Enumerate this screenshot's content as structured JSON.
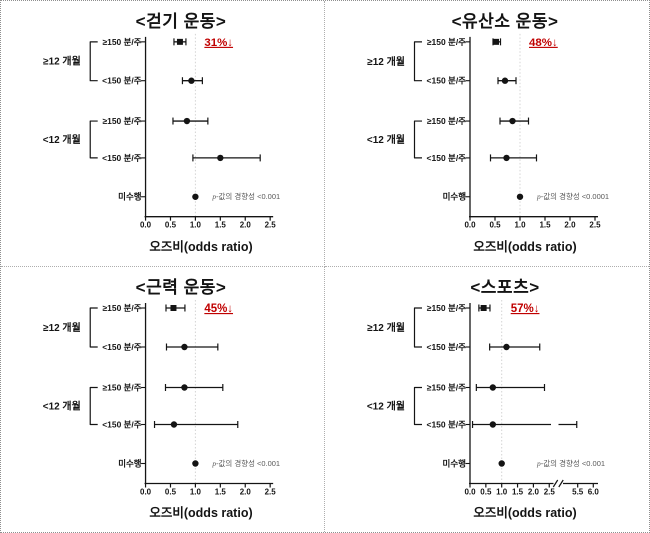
{
  "figure": {
    "colors": {
      "ink": "#141414",
      "annotation": "#c00000",
      "p_text": "#595959",
      "refline": "#d4d4d4"
    }
  },
  "chart_data": {
    "type": "forest",
    "x_axis_title": "오즈비(odds ratio)",
    "panels": [
      {
        "id": "walking",
        "title": "<걷기 운동>",
        "annotation": "31%↓",
        "p_trend_text": "p-값의 경향성 <0.001",
        "xlabel": "오즈비(odds ratio)",
        "refline": 1.0,
        "ticks": [
          {
            "v": 0.0,
            "label": "0.0"
          },
          {
            "v": 0.5,
            "label": "0.5"
          },
          {
            "v": 1.0,
            "label": "1.0"
          },
          {
            "v": 1.5,
            "label": "1.5"
          },
          {
            "v": 2.0,
            "label": "2.0"
          },
          {
            "v": 2.5,
            "label": "2.5"
          }
        ],
        "groups": [
          {
            "label": "≥12 개월",
            "rows": [
              {
                "label": "≥150 분/주",
                "or": 0.69,
                "lo": 0.57,
                "hi": 0.81,
                "marker": "square"
              },
              {
                "label": "<150 분/주",
                "or": 0.92,
                "lo": 0.74,
                "hi": 1.14,
                "marker": "circle"
              }
            ]
          },
          {
            "label": "<12 개월",
            "rows": [
              {
                "label": "≥150 분/주",
                "or": 0.83,
                "lo": 0.55,
                "hi": 1.25,
                "marker": "circle"
              },
              {
                "label": "<150 분/주",
                "or": 1.5,
                "lo": 0.95,
                "hi": 2.3,
                "marker": "circle"
              }
            ]
          }
        ],
        "reference_row": {
          "label": "미수행",
          "or": 1.0,
          "marker": "circle"
        }
      },
      {
        "id": "aerobic",
        "title": "<유산소 운동>",
        "annotation": "48%↓",
        "p_trend_text": "p-값의 경향성 <0.0001",
        "xlabel": "오즈비(odds ratio)",
        "refline": 1.0,
        "ticks": [
          {
            "v": 0.0,
            "label": "0.0"
          },
          {
            "v": 0.5,
            "label": "0.5"
          },
          {
            "v": 1.0,
            "label": "1.0"
          },
          {
            "v": 1.5,
            "label": "1.5"
          },
          {
            "v": 2.0,
            "label": "2.0"
          },
          {
            "v": 2.5,
            "label": "2.5"
          }
        ],
        "groups": [
          {
            "label": "≥12 개월",
            "rows": [
              {
                "label": "≥150 분/주",
                "or": 0.52,
                "lo": 0.46,
                "hi": 0.61,
                "marker": "square"
              },
              {
                "label": "<150 분/주",
                "or": 0.7,
                "lo": 0.56,
                "hi": 0.92,
                "marker": "circle"
              }
            ]
          },
          {
            "label": "<12 개월",
            "rows": [
              {
                "label": "≥150 분/주",
                "or": 0.85,
                "lo": 0.6,
                "hi": 1.17,
                "marker": "circle"
              },
              {
                "label": "<150 분/주",
                "or": 0.73,
                "lo": 0.41,
                "hi": 1.33,
                "marker": "circle"
              }
            ]
          }
        ],
        "reference_row": {
          "label": "미수행",
          "or": 1.0,
          "marker": "circle"
        }
      },
      {
        "id": "strength",
        "title": "<근력 운동>",
        "annotation": "45%↓",
        "p_trend_text": "p-값의 경향성 <0.001",
        "xlabel": "오즈비(odds ratio)",
        "refline": 1.0,
        "ticks": [
          {
            "v": 0.0,
            "label": "0.0"
          },
          {
            "v": 0.5,
            "label": "0.5"
          },
          {
            "v": 1.0,
            "label": "1.0"
          },
          {
            "v": 1.5,
            "label": "1.5"
          },
          {
            "v": 2.0,
            "label": "2.0"
          },
          {
            "v": 2.5,
            "label": "2.5"
          }
        ],
        "groups": [
          {
            "label": "≥12 개월",
            "rows": [
              {
                "label": "≥150 분/주",
                "or": 0.56,
                "lo": 0.41,
                "hi": 0.79,
                "marker": "square"
              },
              {
                "label": "<150 분/주",
                "or": 0.78,
                "lo": 0.42,
                "hi": 1.45,
                "marker": "circle"
              }
            ]
          },
          {
            "label": "<12 개월",
            "rows": [
              {
                "label": "≥150 분/주",
                "or": 0.78,
                "lo": 0.4,
                "hi": 1.55,
                "marker": "circle"
              },
              {
                "label": "<150 분/주",
                "or": 0.57,
                "lo": 0.18,
                "hi": 1.85,
                "marker": "circle"
              }
            ]
          }
        ],
        "reference_row": {
          "label": "미수행",
          "or": 1.0,
          "marker": "circle"
        }
      },
      {
        "id": "sports",
        "title": "<스포츠>",
        "annotation": "57%↓",
        "p_trend_text": "p-값의 경향성 <0.001",
        "xlabel": "오즈비(odds ratio)",
        "refline": 1.0,
        "axis_break": {
          "after": 2.5,
          "resume": 5.5
        },
        "ticks": [
          {
            "v": 0.0,
            "label": "0.0"
          },
          {
            "v": 0.5,
            "label": "0.5"
          },
          {
            "v": 1.0,
            "label": "1.0"
          },
          {
            "v": 1.5,
            "label": "1.5"
          },
          {
            "v": 2.0,
            "label": "2.0"
          },
          {
            "v": 2.5,
            "label": "2.5"
          },
          {
            "v": 5.5,
            "label": "5.5"
          },
          {
            "v": 6.0,
            "label": "6.0"
          }
        ],
        "groups": [
          {
            "label": "≥12 개월",
            "rows": [
              {
                "label": "≥150 분/주",
                "or": 0.43,
                "lo": 0.28,
                "hi": 0.63,
                "marker": "square"
              },
              {
                "label": "<150 분/주",
                "or": 1.15,
                "lo": 0.62,
                "hi": 2.2,
                "marker": "circle"
              }
            ]
          },
          {
            "label": "<12 개월",
            "rows": [
              {
                "label": "≥150 분/주",
                "or": 0.72,
                "lo": 0.2,
                "hi": 2.35,
                "marker": "circle"
              },
              {
                "label": "<150 분/주",
                "or": 0.72,
                "lo": 0.08,
                "hi": 5.4,
                "marker": "circle"
              }
            ]
          }
        ],
        "reference_row": {
          "label": "미수행",
          "or": 1.0,
          "marker": "circle"
        }
      }
    ]
  }
}
